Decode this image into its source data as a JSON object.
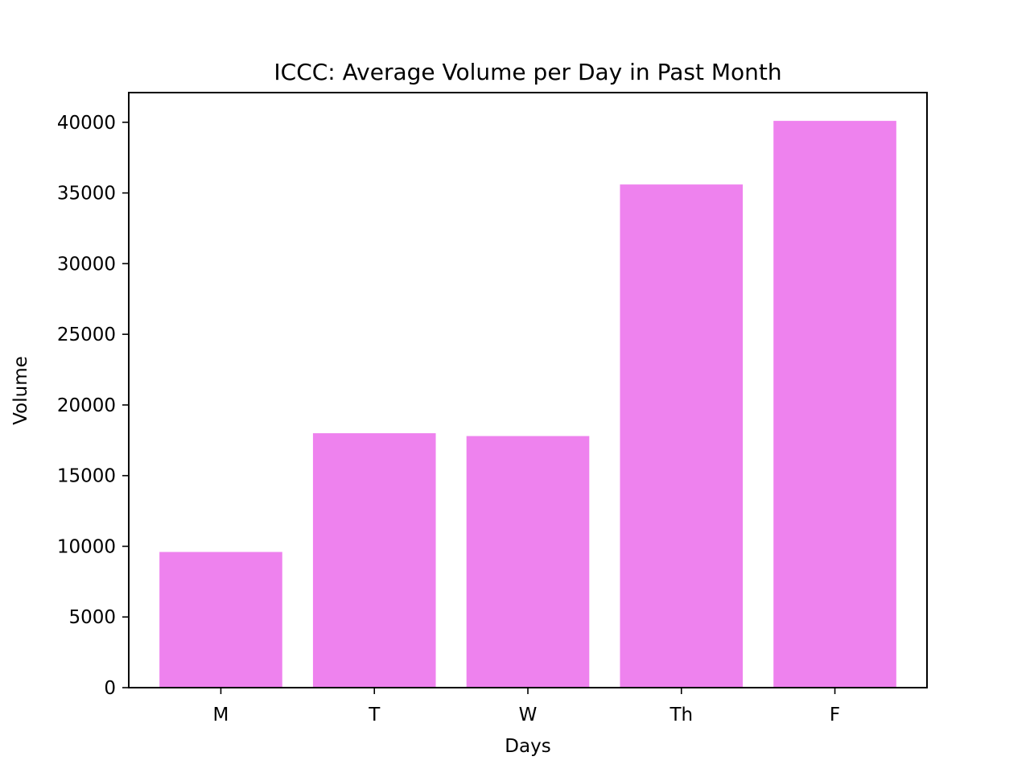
{
  "chart_data": {
    "type": "bar",
    "title": "ICCC: Average Volume per Day in Past Month",
    "xlabel": "Days",
    "ylabel": "Volume",
    "categories": [
      "M",
      "T",
      "W",
      "Th",
      "F"
    ],
    "values": [
      9600,
      18000,
      17800,
      35600,
      40100
    ],
    "ylim": [
      0,
      42100
    ],
    "yticks": [
      0,
      5000,
      10000,
      15000,
      20000,
      25000,
      30000,
      35000,
      40000
    ],
    "ytick_labels": [
      "0",
      "5000",
      "10000",
      "15000",
      "20000",
      "25000",
      "30000",
      "35000",
      "40000"
    ],
    "bar_color": "#ee82ee",
    "grid": false,
    "legend": "none"
  }
}
